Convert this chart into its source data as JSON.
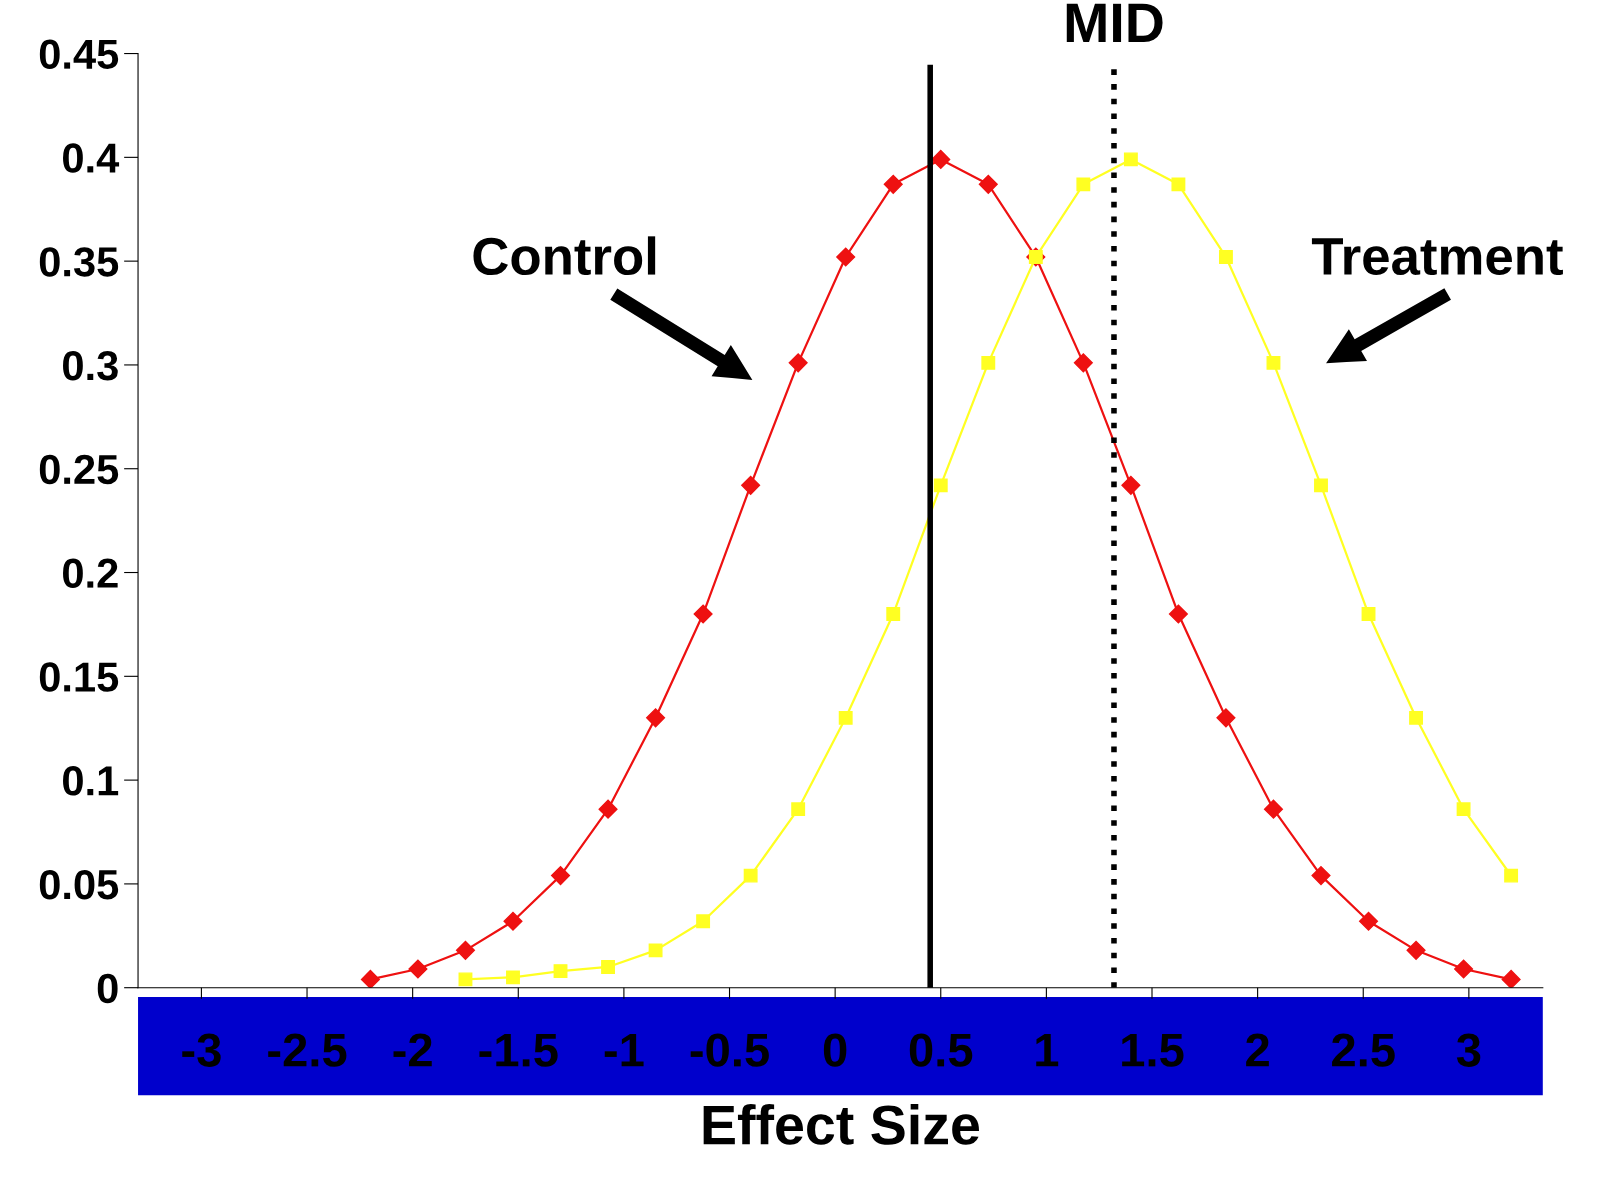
{
  "chart_data": {
    "type": "line",
    "xlabel": "Effect Size",
    "series": [
      {
        "color": "#ee1111",
        "marker": "diamond",
        "x": [
          -2.2,
          -1.975,
          -1.75,
          -1.525,
          -1.3,
          -1.075,
          -0.85,
          -0.625,
          -0.4,
          -0.175,
          0.05,
          0.275,
          0.5,
          0.725,
          0.95,
          1.175,
          1.4,
          1.625,
          1.85,
          2.075,
          2.3,
          2.525,
          2.75,
          2.975,
          3.2
        ],
        "values": [
          0.004,
          0.009,
          0.018,
          0.032,
          0.054,
          0.086,
          0.13,
          0.18,
          0.242,
          0.301,
          0.352,
          0.387,
          0.399,
          0.387,
          0.352,
          0.301,
          0.242,
          0.18,
          0.13,
          0.086,
          0.054,
          0.032,
          0.018,
          0.009,
          0.004
        ]
      },
      {
        "color": "#ffff22",
        "marker": "square",
        "x": [
          -1.75,
          -1.525,
          -1.3,
          -1.075,
          -0.85,
          -0.625,
          -0.4,
          -0.175,
          0.05,
          0.275,
          0.5,
          0.725,
          0.95,
          1.175,
          1.4,
          1.625,
          1.85,
          2.075,
          2.3,
          2.525,
          2.75,
          2.975,
          3.2
        ],
        "values": [
          0.004,
          0.005,
          0.008,
          0.01,
          0.018,
          0.032,
          0.054,
          0.086,
          0.13,
          0.18,
          0.242,
          0.301,
          0.352,
          0.387,
          0.399,
          0.387,
          0.352,
          0.301,
          0.242,
          0.18,
          0.13,
          0.086,
          0.054
        ]
      }
    ],
    "xlim": [
      -3.3,
      3.35
    ],
    "xticks": [
      -3,
      -2.5,
      -2,
      -1.5,
      -1,
      -0.5,
      0,
      0.5,
      1,
      1.5,
      2,
      2.5,
      3
    ],
    "ylim": [
      0,
      0.45
    ],
    "yticks": [
      0,
      0.05,
      0.1,
      0.15,
      0.2,
      0.25,
      0.3,
      0.35,
      0.4,
      0.45
    ],
    "ref_lines": [
      {
        "axis": "x",
        "value": 0.45,
        "color": "#000000",
        "line_style": "solid"
      },
      {
        "axis": "x",
        "value": 1.32,
        "label": "MID",
        "color": "#000000",
        "line_style": "dotted"
      }
    ],
    "annotations": [
      "Control",
      "Treatment"
    ],
    "grid": false,
    "legend": false
  }
}
